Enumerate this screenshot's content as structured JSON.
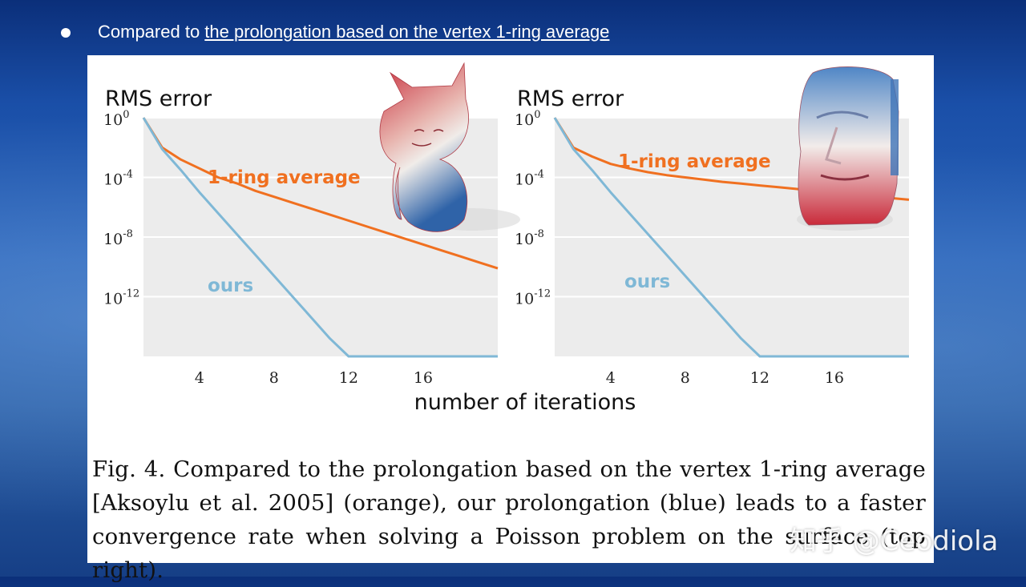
{
  "slide": {
    "bullet_prefix": "Compared to ",
    "bullet_link": "the prolongation based on the vertex 1-ring average"
  },
  "caption": {
    "line1": "Fig. 4.  Compared to the prolongation based on the vertex 1-ring average",
    "line2": "[Aksoylu et al. 2005] (orange), our prolongation (blue) leads to a faster",
    "line3": "convergence rate when solving a Poisson problem on the surface (top right)."
  },
  "watermark": "知乎 @Ceodiola",
  "colors": {
    "orange": "#f07020",
    "blue": "#7fb8d6",
    "plot_bg": "#ececec",
    "grid": "#ffffff"
  },
  "chart_data": [
    {
      "type": "line",
      "title": "RMS error",
      "xlabel": "number of iterations",
      "ylabel": "RMS error",
      "y_scale": "log10",
      "xlim": [
        1,
        20
      ],
      "ylim": [
        -16,
        0
      ],
      "x_ticks": [
        4,
        8,
        12,
        16
      ],
      "y_ticks": [
        0,
        -4,
        -8,
        -12
      ],
      "y_tick_labels": [
        "10^0",
        "10^-4",
        "10^-8",
        "10^-12"
      ],
      "object": "cat model",
      "series": [
        {
          "name": "1-ring average",
          "color": "orange",
          "x": [
            1,
            2,
            3,
            4,
            5,
            6,
            7,
            8,
            9,
            10,
            11,
            12,
            13,
            14,
            15,
            16,
            17,
            18,
            19,
            20
          ],
          "y": [
            0,
            -2,
            -2.8,
            -3.4,
            -4,
            -4.4,
            -4.9,
            -5.3,
            -5.7,
            -6.1,
            -6.5,
            -6.9,
            -7.3,
            -7.7,
            -8.1,
            -8.5,
            -8.9,
            -9.3,
            -9.7,
            -10.1
          ]
        },
        {
          "name": "ours",
          "color": "blue",
          "x": [
            1,
            2,
            3,
            4,
            5,
            6,
            7,
            8,
            9,
            10,
            11,
            12,
            13,
            14,
            15,
            16,
            17,
            18,
            19,
            20
          ],
          "y": [
            0,
            -2.1,
            -3.5,
            -5.0,
            -6.4,
            -7.8,
            -9.2,
            -10.6,
            -12.0,
            -13.4,
            -14.8,
            -16,
            -16,
            -16,
            -16,
            -16,
            -16,
            -16,
            -16,
            -16
          ]
        }
      ]
    },
    {
      "type": "line",
      "title": "RMS error",
      "xlabel": "number of iterations",
      "ylabel": "RMS error",
      "y_scale": "log10",
      "xlim": [
        1,
        20
      ],
      "ylim": [
        -16,
        0
      ],
      "x_ticks": [
        4,
        8,
        12,
        16
      ],
      "y_ticks": [
        0,
        -4,
        -8,
        -12
      ],
      "y_tick_labels": [
        "10^0",
        "10^-4",
        "10^-8",
        "10^-12"
      ],
      "object": "moai head model",
      "series": [
        {
          "name": "1-ring average",
          "color": "orange",
          "x": [
            1,
            2,
            3,
            4,
            5,
            6,
            7,
            8,
            9,
            10,
            11,
            12,
            13,
            14,
            15,
            16,
            17,
            18,
            19,
            20
          ],
          "y": [
            0,
            -2,
            -2.6,
            -3.1,
            -3.4,
            -3.65,
            -3.85,
            -4.0,
            -4.15,
            -4.3,
            -4.42,
            -4.54,
            -4.66,
            -4.78,
            -4.9,
            -5.02,
            -5.14,
            -5.26,
            -5.38,
            -5.5
          ]
        },
        {
          "name": "ours",
          "color": "blue",
          "x": [
            1,
            2,
            3,
            4,
            5,
            6,
            7,
            8,
            9,
            10,
            11,
            12,
            13,
            14,
            15,
            16,
            17,
            18,
            19,
            20
          ],
          "y": [
            0,
            -2.1,
            -3.5,
            -5.0,
            -6.4,
            -7.8,
            -9.2,
            -10.6,
            -12.0,
            -13.4,
            -14.8,
            -16,
            -16,
            -16,
            -16,
            -16,
            -16,
            -16,
            -16,
            -16
          ]
        }
      ]
    }
  ]
}
